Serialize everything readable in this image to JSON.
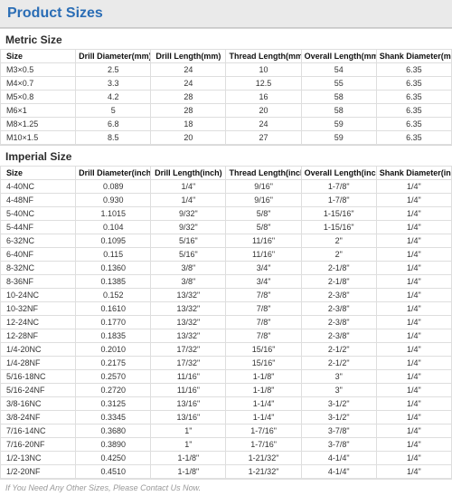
{
  "title": "Product Sizes",
  "metric": {
    "heading": "Metric Size",
    "columns": [
      "Size",
      "Drill Diameter(mm)",
      "Drill Length(mm)",
      "Thread Length(mm)",
      "Overall Length(mm)",
      "Shank Diameter(mm)"
    ],
    "rows": [
      [
        "M3×0.5",
        "2.5",
        "24",
        "10",
        "54",
        "6.35"
      ],
      [
        "M4×0.7",
        "3.3",
        "24",
        "12.5",
        "55",
        "6.35"
      ],
      [
        "M5×0.8",
        "4.2",
        "28",
        "16",
        "58",
        "6.35"
      ],
      [
        "M6×1",
        "5",
        "28",
        "20",
        "58",
        "6.35"
      ],
      [
        "M8×1.25",
        "6.8",
        "18",
        "24",
        "59",
        "6.35"
      ],
      [
        "M10×1.5",
        "8.5",
        "20",
        "27",
        "59",
        "6.35"
      ]
    ]
  },
  "imperial": {
    "heading": "Imperial Size",
    "columns": [
      "Size",
      "Drill Diameter(inch)",
      "Drill Length(inch)",
      "Thread Length(inch)",
      "Overall Length(inch)",
      "Shank Diameter(inch)"
    ],
    "rows": [
      [
        "4-40NC",
        "0.089",
        "1/4\"",
        "9/16\"",
        "1-7/8\"",
        "1/4\""
      ],
      [
        "4-48NF",
        "0.930",
        "1/4\"",
        "9/16\"",
        "1-7/8\"",
        "1/4\""
      ],
      [
        "5-40NC",
        "1.1015",
        "9/32\"",
        "5/8\"",
        "1-15/16\"",
        "1/4\""
      ],
      [
        "5-44NF",
        "0.104",
        "9/32\"",
        "5/8\"",
        "1-15/16\"",
        "1/4\""
      ],
      [
        "6-32NC",
        "0.1095",
        "5/16\"",
        "11/16\"",
        "2\"",
        "1/4\""
      ],
      [
        "6-40NF",
        "0.115",
        "5/16\"",
        "11/16\"",
        "2\"",
        "1/4\""
      ],
      [
        "8-32NC",
        "0.1360",
        "3/8\"",
        "3/4\"",
        "2-1/8\"",
        "1/4\""
      ],
      [
        "8-36NF",
        "0.1385",
        "3/8\"",
        "3/4\"",
        "2-1/8\"",
        "1/4\""
      ],
      [
        "10-24NC",
        "0.152",
        "13/32\"",
        "7/8\"",
        "2-3/8\"",
        "1/4\""
      ],
      [
        "10-32NF",
        "0.1610",
        "13/32\"",
        "7/8\"",
        "2-3/8\"",
        "1/4\""
      ],
      [
        "12-24NC",
        "0.1770",
        "13/32\"",
        "7/8\"",
        "2-3/8\"",
        "1/4\""
      ],
      [
        "12-28NF",
        "0.1835",
        "13/32\"",
        "7/8\"",
        "2-3/8\"",
        "1/4\""
      ],
      [
        "1/4-20NC",
        "0.2010",
        "17/32\"",
        "15/16\"",
        "2-1/2\"",
        "1/4\""
      ],
      [
        "1/4-28NF",
        "0.2175",
        "17/32\"",
        "15/16\"",
        "2-1/2\"",
        "1/4\""
      ],
      [
        "5/16-18NC",
        "0.2570",
        "11/16\"",
        "1-1/8\"",
        "3\"",
        "1/4\""
      ],
      [
        "5/16-24NF",
        "0.2720",
        "11/16\"",
        "1-1/8\"",
        "3\"",
        "1/4\""
      ],
      [
        "3/8-16NC",
        "0.3125",
        "13/16\"",
        "1-1/4\"",
        "3-1/2\"",
        "1/4\""
      ],
      [
        "3/8-24NF",
        "0.3345",
        "13/16\"",
        "1-1/4\"",
        "3-1/2\"",
        "1/4\""
      ],
      [
        "7/16-14NC",
        "0.3680",
        "1\"",
        "1-7/16\"",
        "3-7/8\"",
        "1/4\""
      ],
      [
        "7/16-20NF",
        "0.3890",
        "1\"",
        "1-7/16\"",
        "3-7/8\"",
        "1/4\""
      ],
      [
        "1/2-13NC",
        "0.4250",
        "1-1/8\"",
        "1-21/32\"",
        "4-1/4\"",
        "1/4\""
      ],
      [
        "1/2-20NF",
        "0.4510",
        "1-1/8\"",
        "1-21/32\"",
        "4-1/4\"",
        "1/4\""
      ]
    ]
  },
  "footnote": "If You Need Any Other Sizes, Please Contact Us Now."
}
